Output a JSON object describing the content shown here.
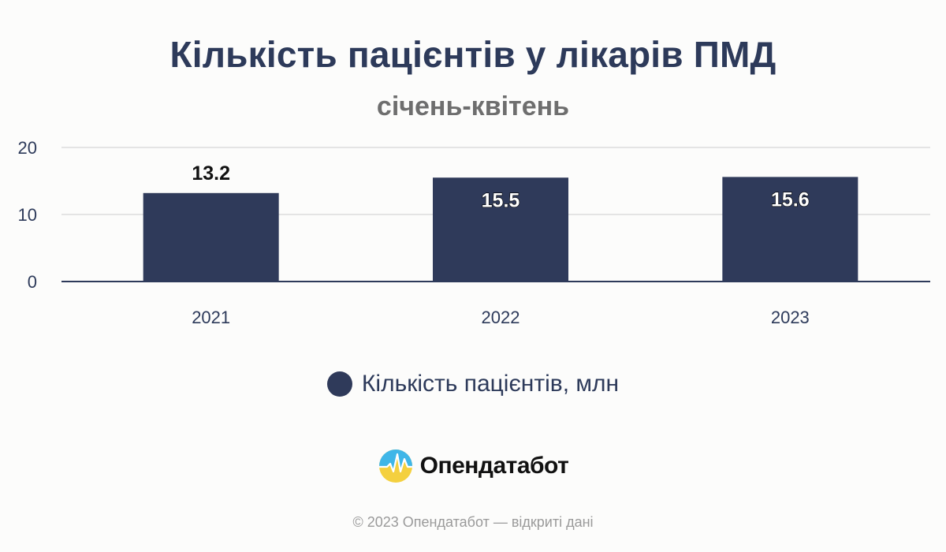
{
  "header": {
    "title": "Кількість пацієнтів у лікарів ПМД",
    "subtitle": "січень-квітень"
  },
  "chart_data": {
    "type": "bar",
    "categories": [
      "2021",
      "2022",
      "2023"
    ],
    "series": [
      {
        "name": "Кількість пацієнтів, млн",
        "values": [
          13.2,
          15.5,
          15.6
        ]
      }
    ],
    "data_labels": [
      "13.2",
      "15.5",
      "15.6"
    ],
    "y_ticks": [
      "0",
      "10",
      "20"
    ],
    "ylim": [
      0,
      20
    ],
    "grid": true,
    "legend_position": "bottom",
    "bar_color": "#2f3a5a"
  },
  "legend": {
    "label": "Кількість пацієнтів, млн",
    "color": "#2f3a5a"
  },
  "branding": {
    "logo_text": "Опендатабот",
    "logo_icon": "opendatabot-logo-icon"
  },
  "footer": {
    "copyright": "© 2023 Опендатабот — відкриті дані"
  }
}
